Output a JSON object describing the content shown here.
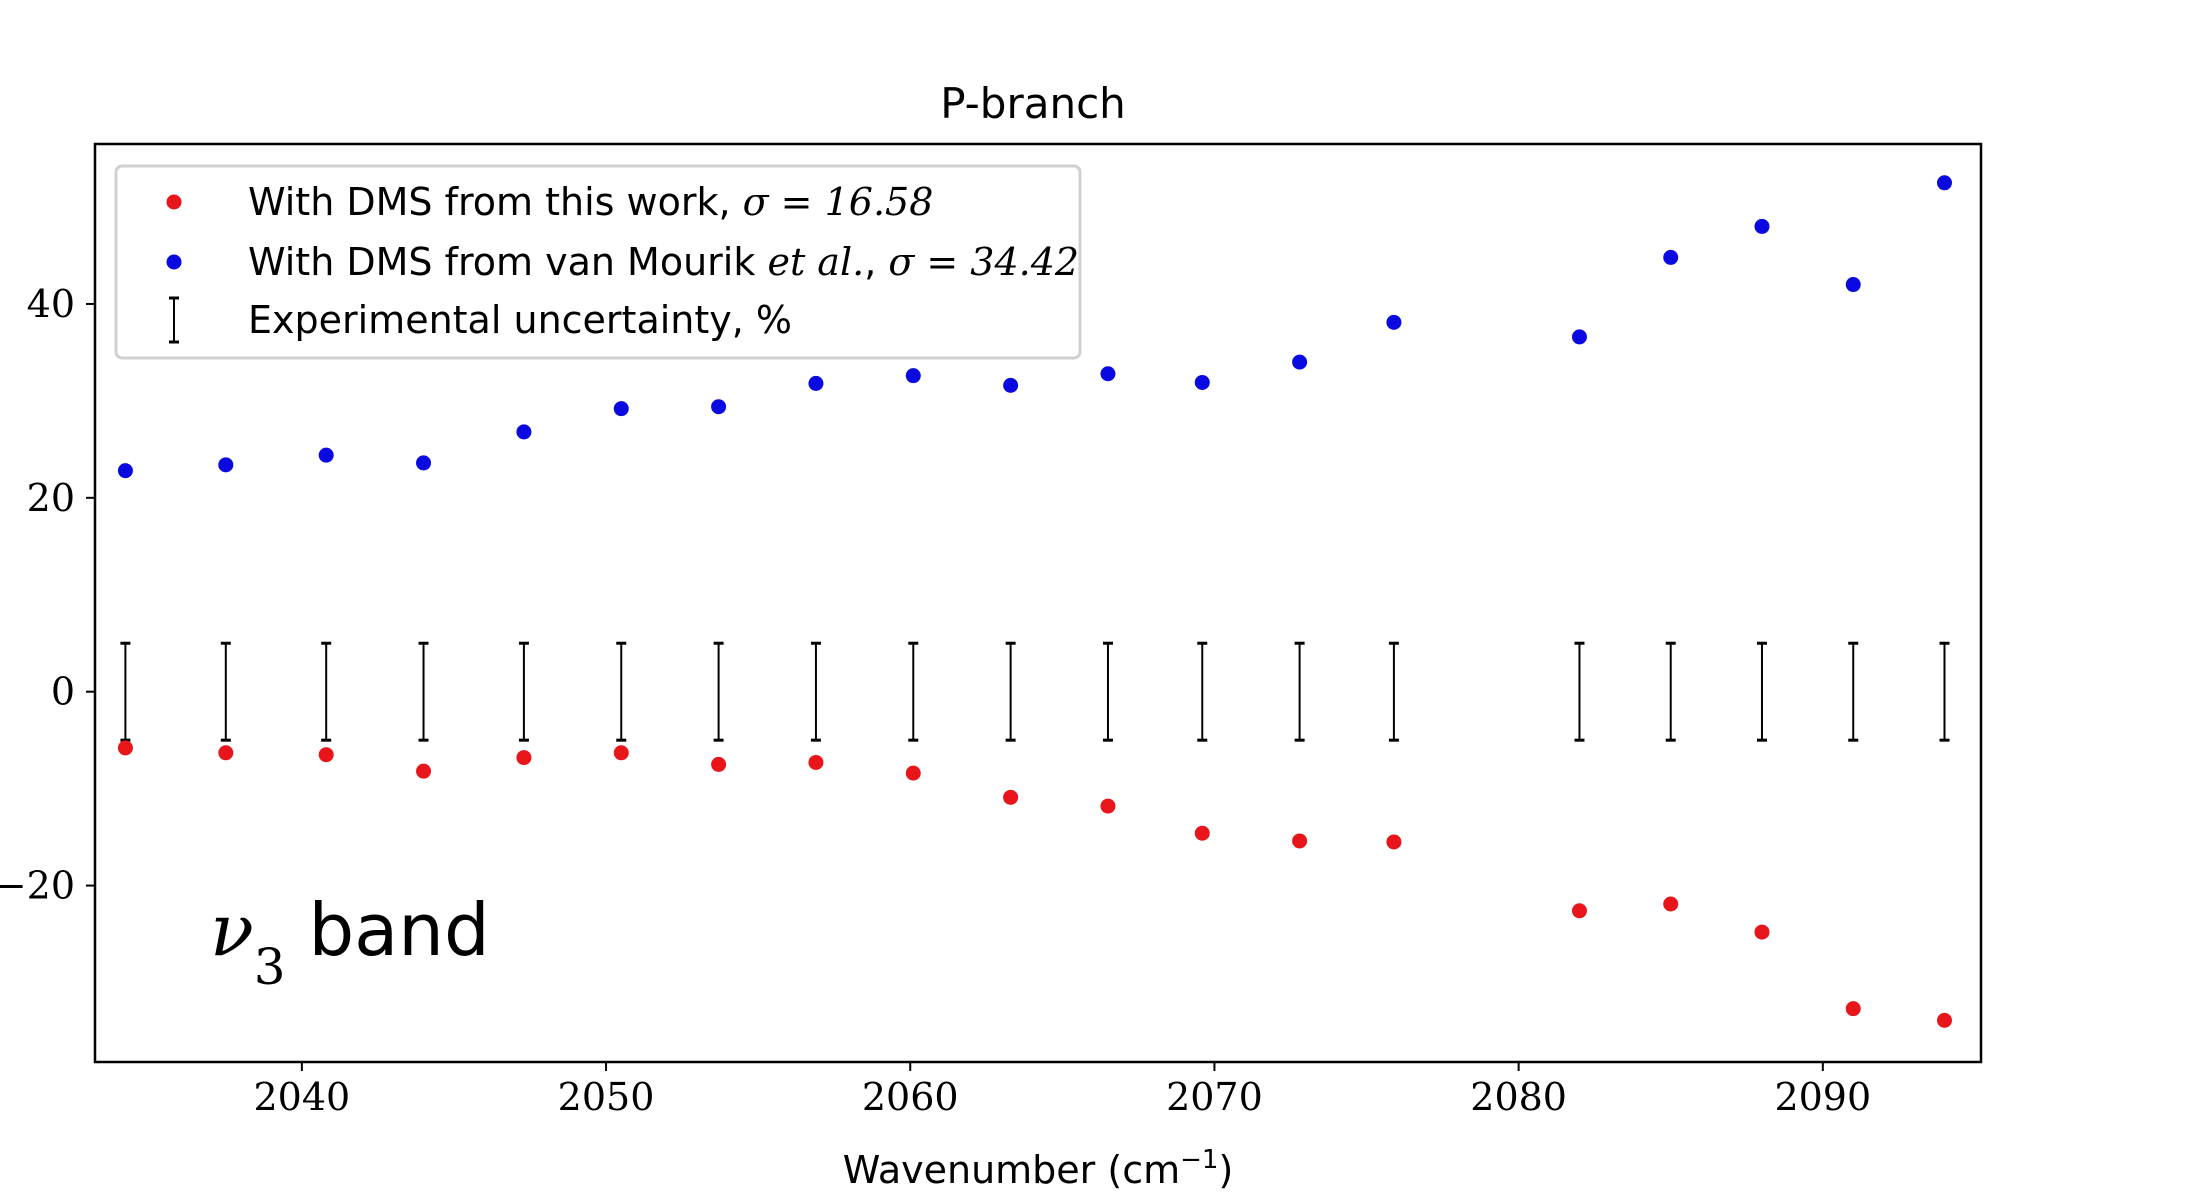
{
  "chart_data": {
    "type": "scatter",
    "title": "P-branch",
    "xlabel": "Wavenumber (cm⁻¹)",
    "xlabel_base": "Wavenumber (cm",
    "xlabel_sup": "−1",
    "xlabel_end": ")",
    "ylabel": "",
    "xlim": [
      2033.2,
      2095.2
    ],
    "ylim": [
      -38.2,
      56.5
    ],
    "x_ticks": [
      2040,
      2050,
      2060,
      2070,
      2080,
      2090
    ],
    "x_tick_labels": [
      "2040",
      "2050",
      "2060",
      "2070",
      "2080",
      "2090"
    ],
    "y_ticks": [
      -20,
      0,
      20,
      40
    ],
    "y_tick_labels": [
      "−20",
      "0",
      "20",
      "40"
    ],
    "x": [
      2034.2,
      2037.5,
      2040.8,
      2044.0,
      2047.3,
      2050.5,
      2053.7,
      2056.9,
      2060.1,
      2063.3,
      2066.5,
      2069.6,
      2072.8,
      2075.9,
      2082.0,
      2085.0,
      2088.0,
      2091.0,
      2094.0
    ],
    "series": [
      {
        "name": "With DMS from this work, σ = 16.58",
        "color": "#e8161a",
        "values": [
          -5.8,
          -6.3,
          -6.5,
          -8.2,
          -6.8,
          -6.3,
          -7.5,
          -7.3,
          -8.4,
          -10.9,
          -11.8,
          -14.6,
          -15.4,
          -15.5,
          -22.6,
          -21.9,
          -24.8,
          -32.7,
          -33.9
        ]
      },
      {
        "name": "With DMS from van Mourik et al., σ = 34.42",
        "color": "#0a0ae0",
        "values": [
          22.8,
          23.4,
          24.4,
          23.6,
          26.8,
          29.2,
          29.4,
          31.8,
          32.6,
          31.6,
          32.8,
          31.9,
          34.0,
          38.1,
          36.6,
          44.8,
          48.0,
          42.0,
          52.5
        ]
      }
    ],
    "error_bars": {
      "name": "Experimental uncertainty, %",
      "color": "#000000",
      "center": 0,
      "half_width": 5
    },
    "legend": {
      "position": "top-left",
      "entries": [
        {
          "prefix": "With DMS from this work, ",
          "math": "σ = 16.58"
        },
        {
          "prefix": "With DMS from van Mourik ",
          "italic": "et al.",
          "suffix": ", ",
          "math": "σ = 34.42"
        },
        {
          "prefix": "Experimental uncertainty, %"
        }
      ]
    },
    "annotation": {
      "nu": "ν",
      "sub": "3",
      "text": " band"
    },
    "grid": false
  }
}
